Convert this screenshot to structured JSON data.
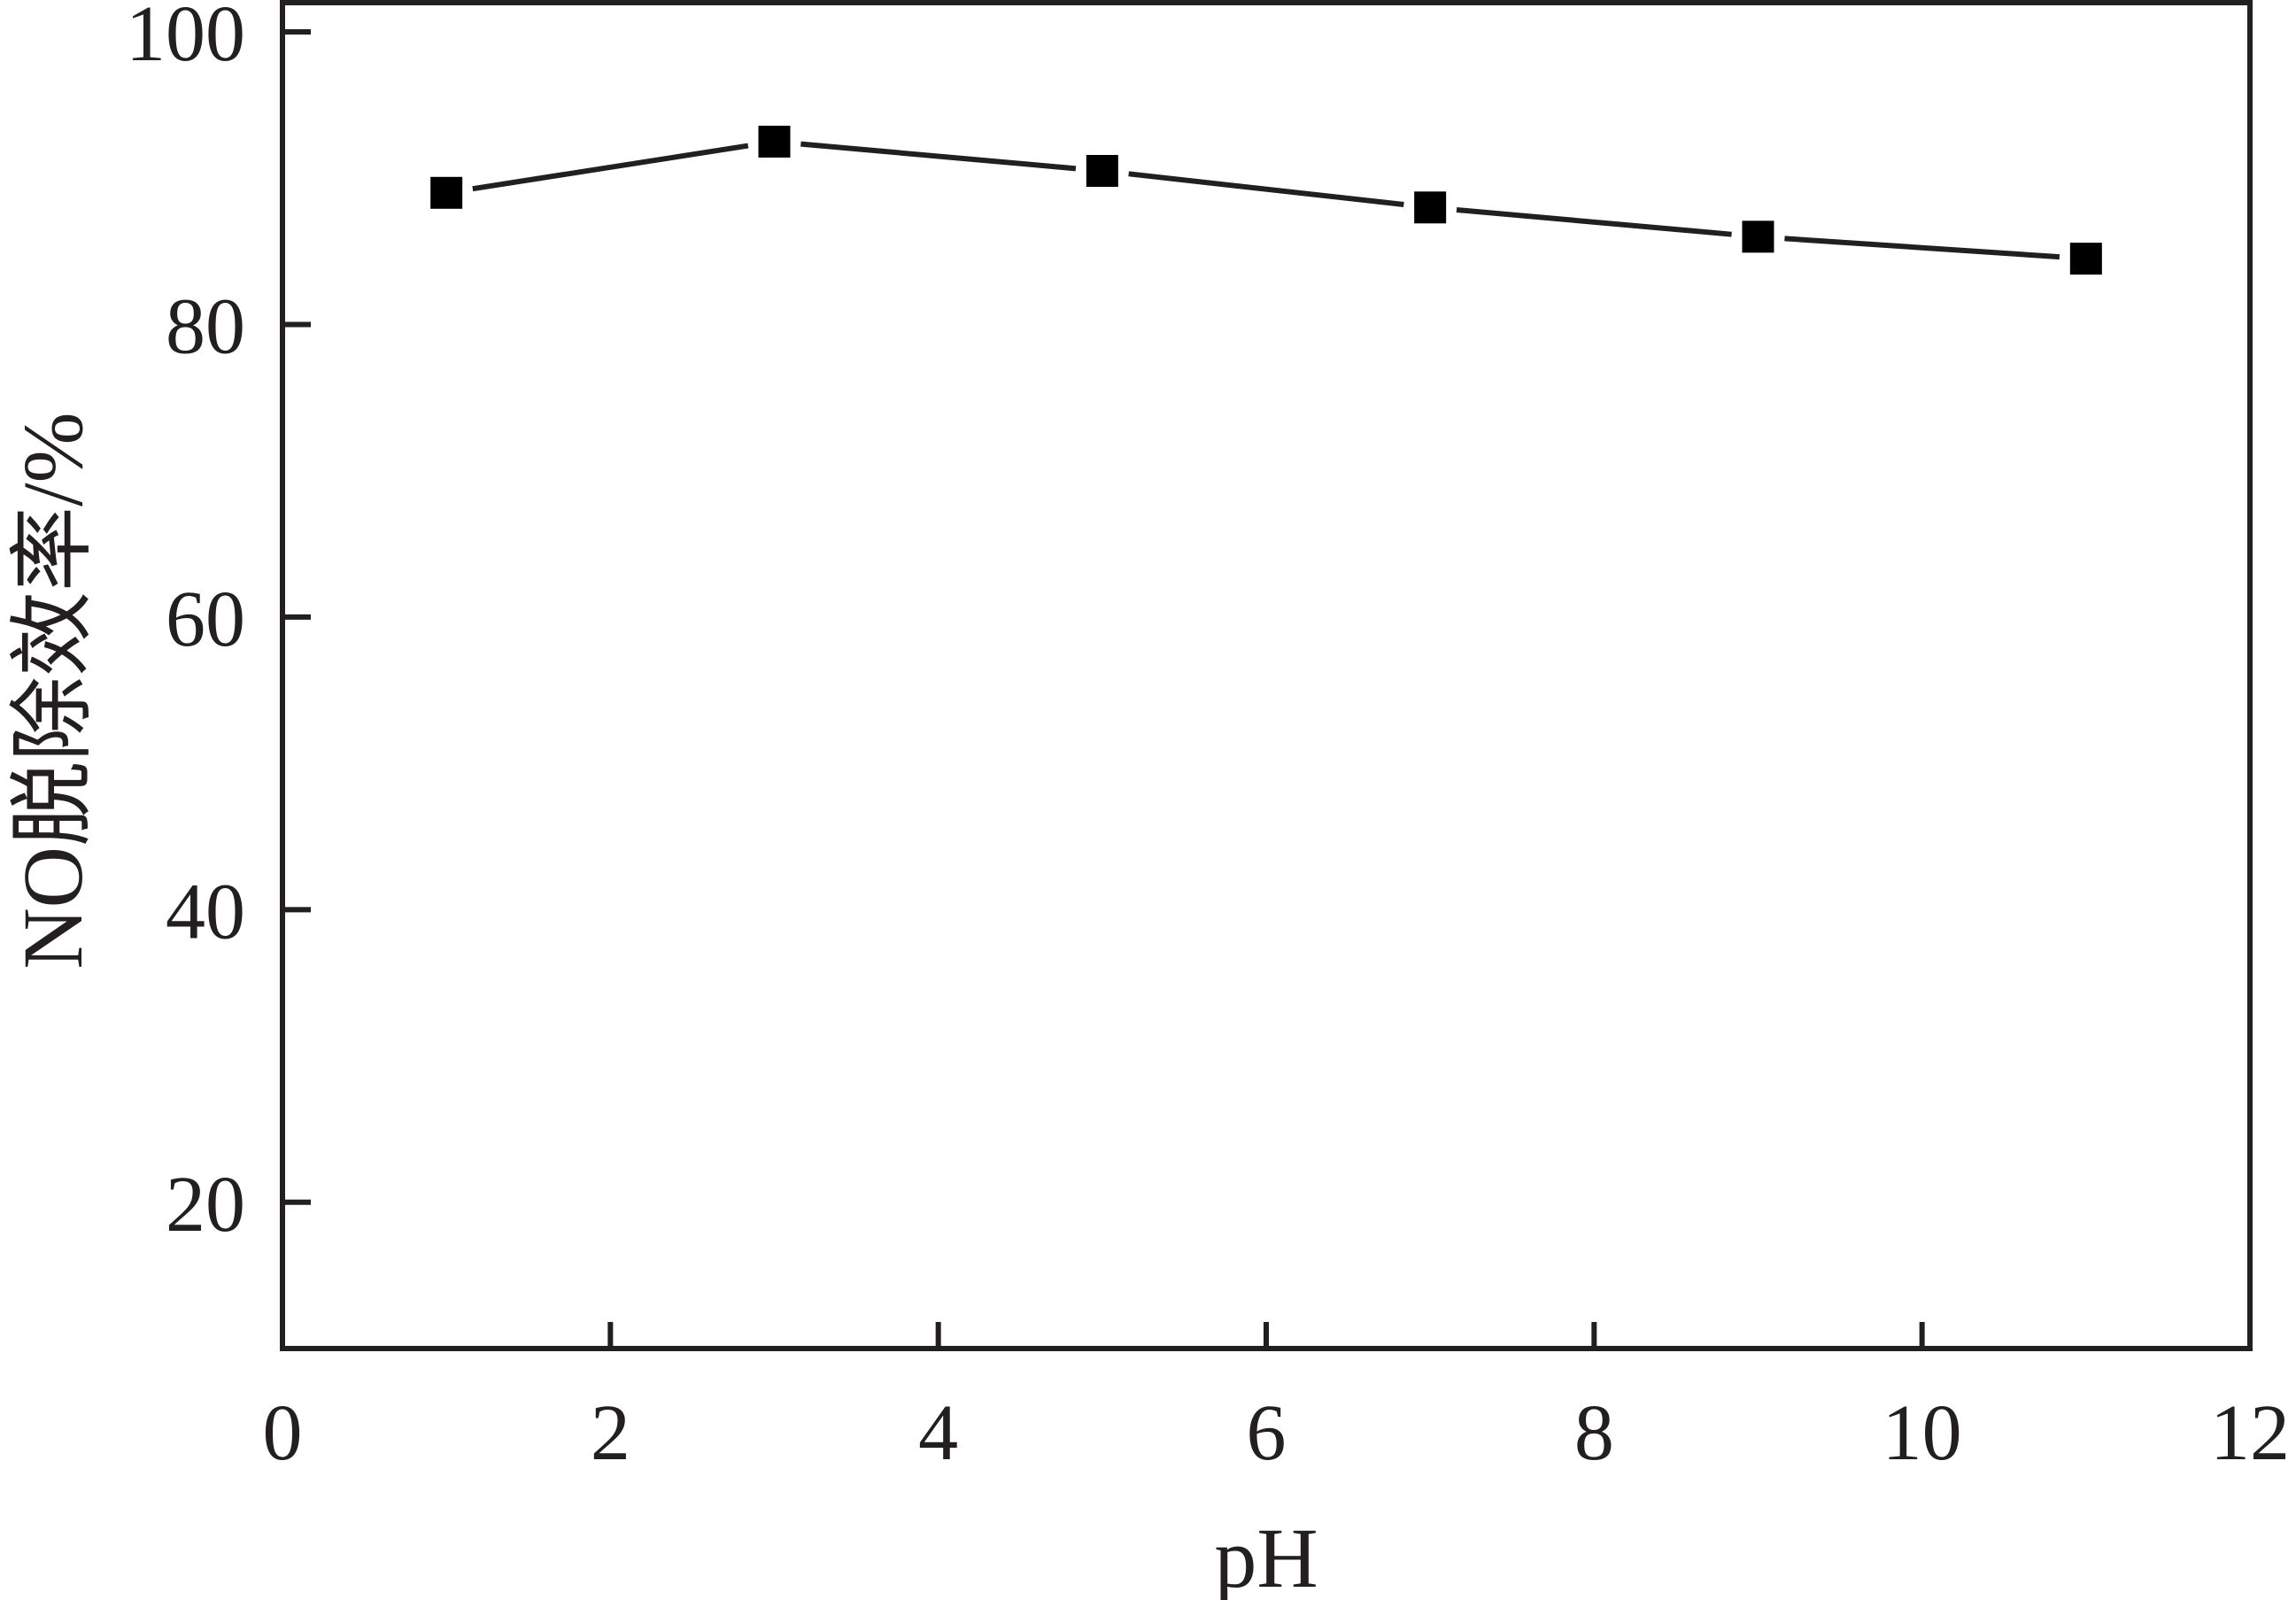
{
  "chart_data": {
    "type": "line",
    "xlabel": "pH",
    "ylabel": "NO脱除效率/%",
    "xlim": [
      0,
      12
    ],
    "ylim": [
      10,
      102
    ],
    "x_ticks": [
      "0",
      "2",
      "4",
      "6",
      "8",
      "10",
      "12"
    ],
    "y_ticks": [
      "20",
      "40",
      "60",
      "80",
      "100"
    ],
    "grid": false,
    "legend": "none",
    "series": [
      {
        "x": [
          1,
          3,
          5,
          7,
          9,
          11
        ],
        "y": [
          89.0,
          92.5,
          90.5,
          88.0,
          86.0,
          84.5
        ],
        "marker": "square",
        "color": "#000000"
      }
    ],
    "line_color": "#231f20"
  }
}
